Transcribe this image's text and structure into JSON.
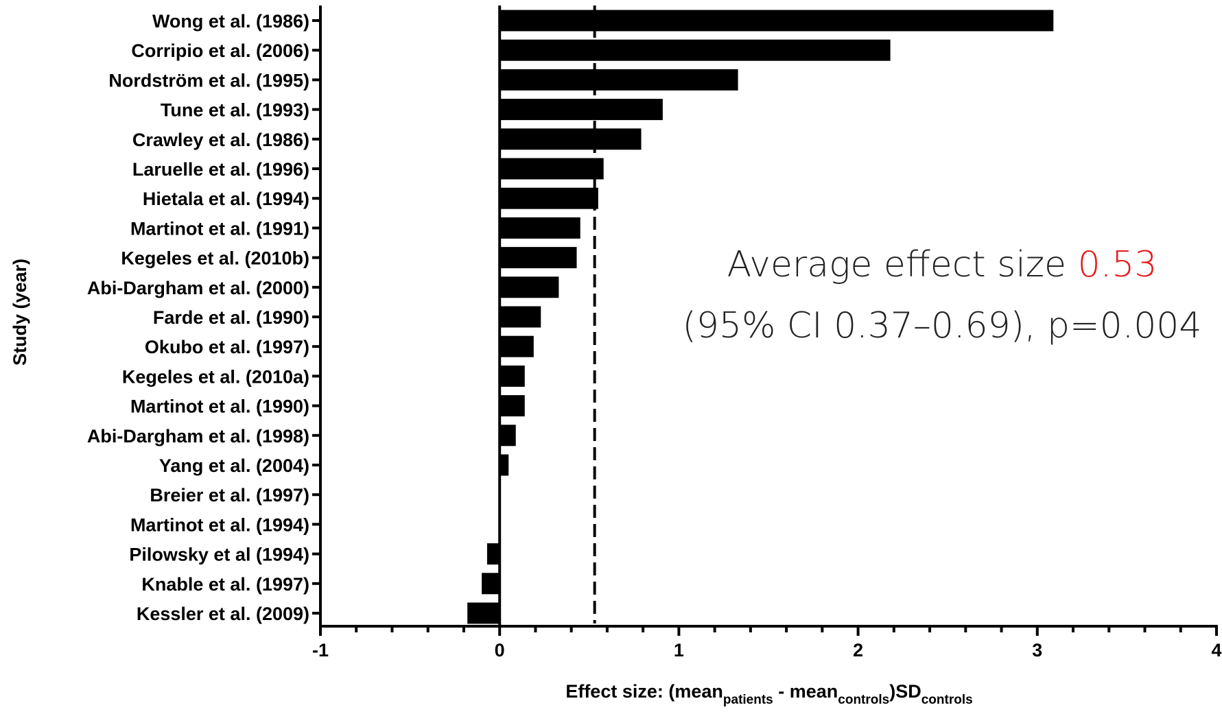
{
  "chart_data": {
    "type": "bar",
    "orientation": "horizontal",
    "categories": [
      "Wong et al. (1986)",
      "Corripio et al. (2006)",
      "Nordström et al. (1995)",
      "Tune et al. (1993)",
      "Crawley et al. (1986)",
      "Laruelle et al. (1996)",
      "Hietala et al. (1994)",
      "Martinot et al. (1991)",
      "Kegeles et al. (2010b)",
      "Abi-Dargham et al. (2000)",
      "Farde et al. (1990)",
      "Okubo et al. (1997)",
      "Kegeles et al. (2010a)",
      "Martinot et al. (1990)",
      "Abi-Dargham et al. (1998)",
      "Yang et al. (2004)",
      "Breier et al. (1997)",
      "Martinot et al. (1994)",
      "Pilowsky et al (1994)",
      "Knable et al. (1997)",
      "Kessler et al. (2009)"
    ],
    "values": [
      3.09,
      2.18,
      1.33,
      0.91,
      0.79,
      0.58,
      0.55,
      0.45,
      0.43,
      0.33,
      0.23,
      0.19,
      0.14,
      0.14,
      0.09,
      0.05,
      0.0,
      0.0,
      -0.07,
      -0.1,
      -0.18
    ],
    "xlim": [
      -1,
      4
    ],
    "x_ticks": [
      "-1",
      "0",
      "1",
      "2",
      "3",
      "4"
    ],
    "x_minor_tick_step": 0.2,
    "ylabel": "Study (year)",
    "xlabel": {
      "prefix": "Effect size: (mean",
      "sub1": "patients",
      "mid": " - mean",
      "sub2": "controls",
      "mid2": ")SD",
      "sub3": "controls"
    },
    "reference_line": {
      "value": 0.53,
      "style": "dashed"
    },
    "annotation": {
      "line1_prefix": "Average effect size ",
      "line1_value": "0.53",
      "line2": "(95% CI 0.37–0.69), p=0.004"
    },
    "grid": false,
    "bar_color": "#000000",
    "highlight_color": "#e8191a"
  }
}
